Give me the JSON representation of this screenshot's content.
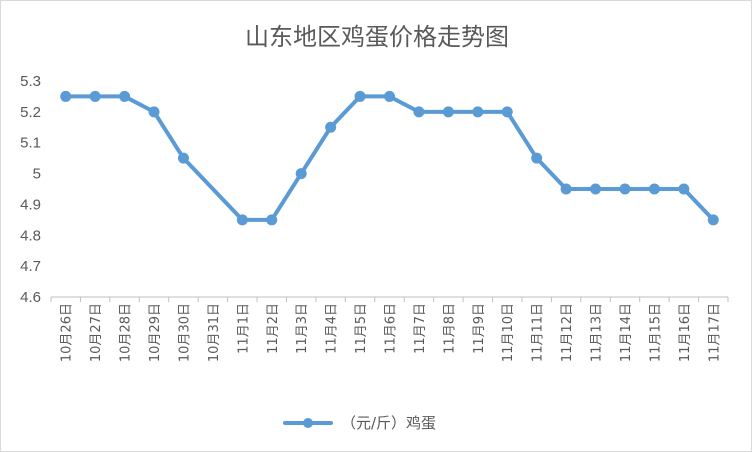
{
  "chart_data": {
    "type": "line",
    "title": "山东地区鸡蛋价格走势图",
    "xlabel": "",
    "ylabel": "",
    "ylim": [
      4.6,
      5.3
    ],
    "yticks": [
      "4.6",
      "4.7",
      "4.8",
      "4.9",
      "5",
      "5.1",
      "5.2",
      "5.3"
    ],
    "grid": false,
    "legend_position": "bottom",
    "color": "#5b9bd5",
    "categories": [
      "10月26日",
      "10月27日",
      "10月28日",
      "10月29日",
      "10月30日",
      "10月31日",
      "11月1日",
      "11月2日",
      "11月3日",
      "11月4日",
      "11月5日",
      "11月6日",
      "11月7日",
      "11月8日",
      "11月9日",
      "11月10日",
      "11月11日",
      "11月12日",
      "11月13日",
      "11月14日",
      "11月15日",
      "11月16日",
      "11月17日"
    ],
    "series": [
      {
        "name": "（元/斤）鸡蛋",
        "values": [
          5.25,
          5.25,
          5.25,
          5.2,
          5.05,
          null,
          4.85,
          4.85,
          5.0,
          5.15,
          5.25,
          5.25,
          5.2,
          5.2,
          5.2,
          5.2,
          5.05,
          4.95,
          4.95,
          4.95,
          4.95,
          4.95,
          4.85
        ]
      }
    ]
  }
}
